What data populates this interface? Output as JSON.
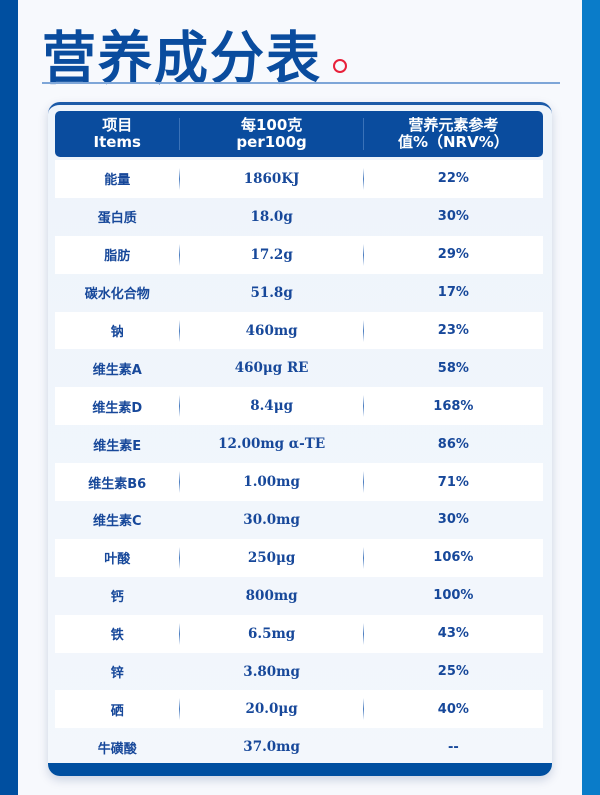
{
  "title": "营养成分表",
  "colors": {
    "primary": "#0a4c9e",
    "band_left": "#004fa0",
    "band_right": "#0a7cc9",
    "accent_mark": "#e8203a"
  },
  "table": {
    "headers": [
      {
        "line1": "项目",
        "line2": "Items"
      },
      {
        "line1": "每100克",
        "line2": "per100g"
      },
      {
        "line1": "营养元素参考",
        "line2": "值%（NRV%）"
      }
    ],
    "rows": [
      {
        "item": "能量",
        "per100g": "1860KJ",
        "nrv": "22%"
      },
      {
        "item": "蛋白质",
        "per100g": "18.0g",
        "nrv": "30%"
      },
      {
        "item": "脂肪",
        "per100g": "17.2g",
        "nrv": "29%"
      },
      {
        "item": "碳水化合物",
        "per100g": "51.8g",
        "nrv": "17%"
      },
      {
        "item": "钠",
        "per100g": "460mg",
        "nrv": "23%"
      },
      {
        "item": "维生素A",
        "per100g": "460μg RE",
        "nrv": "58%"
      },
      {
        "item": "维生素D",
        "per100g": "8.4μg",
        "nrv": "168%"
      },
      {
        "item": "维生素E",
        "per100g": "12.00mg α-TE",
        "nrv": "86%"
      },
      {
        "item": "维生素B6",
        "per100g": "1.00mg",
        "nrv": "71%"
      },
      {
        "item": "维生素C",
        "per100g": "30.0mg",
        "nrv": "30%"
      },
      {
        "item": "叶酸",
        "per100g": "250μg",
        "nrv": "106%"
      },
      {
        "item": "钙",
        "per100g": "800mg",
        "nrv": "100%"
      },
      {
        "item": "铁",
        "per100g": "6.5mg",
        "nrv": "43%"
      },
      {
        "item": "锌",
        "per100g": "3.80mg",
        "nrv": "25%"
      },
      {
        "item": "硒",
        "per100g": "20.0μg",
        "nrv": "40%"
      },
      {
        "item": "牛磺酸",
        "per100g": "37.0mg",
        "nrv": "--"
      }
    ]
  }
}
